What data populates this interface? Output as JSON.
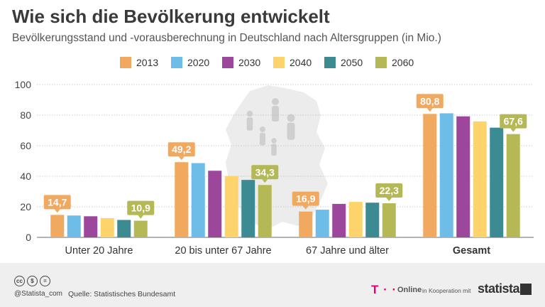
{
  "header": {
    "title": "Wie sich die Bevölkerung entwickelt",
    "subtitle": "Bevölkerungsstand und -vorausberechnung in Deutschland nach Altersgruppen (in Mio.)"
  },
  "chart_data": {
    "type": "bar",
    "categories": [
      "Unter 20 Jahre",
      "20 bis unter 67 Jahre",
      "67 Jahre und älter",
      "Gesamt"
    ],
    "series": [
      {
        "name": "2013",
        "color": "#f0a95e",
        "values": [
          14.7,
          49.2,
          16.9,
          80.8
        ]
      },
      {
        "name": "2020",
        "color": "#6dbde8",
        "values": [
          14.3,
          48.6,
          18.1,
          81.2
        ]
      },
      {
        "name": "2030",
        "color": "#9c479c",
        "values": [
          13.8,
          43.6,
          21.9,
          79.2
        ]
      },
      {
        "name": "2040",
        "color": "#fdd46b",
        "values": [
          12.6,
          40.1,
          23.2,
          75.9
        ]
      },
      {
        "name": "2050",
        "color": "#3c8b93",
        "values": [
          11.4,
          37.6,
          22.7,
          71.8
        ]
      },
      {
        "name": "2060",
        "color": "#b5b955",
        "values": [
          10.9,
          34.3,
          22.3,
          67.6
        ]
      }
    ],
    "data_labels": [
      {
        "category": 0,
        "series": 0,
        "text": "14,7"
      },
      {
        "category": 0,
        "series": 5,
        "text": "10,9"
      },
      {
        "category": 1,
        "series": 0,
        "text": "49,2"
      },
      {
        "category": 1,
        "series": 5,
        "text": "34,3"
      },
      {
        "category": 2,
        "series": 0,
        "text": "16,9"
      },
      {
        "category": 2,
        "series": 5,
        "text": "22,3"
      },
      {
        "category": 3,
        "series": 0,
        "text": "80,8"
      },
      {
        "category": 3,
        "series": 5,
        "text": "67,6"
      }
    ],
    "bold_categories": [
      "Gesamt"
    ],
    "ylim": [
      0,
      100
    ],
    "yticks": [
      0,
      20,
      40,
      60,
      80,
      100
    ],
    "xlabel": "",
    "ylabel": "",
    "grid": true,
    "legend_position": "top"
  },
  "footer": {
    "cc_icons": [
      "cc",
      "$",
      "="
    ],
    "handle": "@Statista_com",
    "source": "Quelle: Statistisches Bundesamt",
    "tlogo": "T · ·",
    "online": "Online",
    "cooperation": "in Kooperation mit",
    "brand": "statista"
  }
}
